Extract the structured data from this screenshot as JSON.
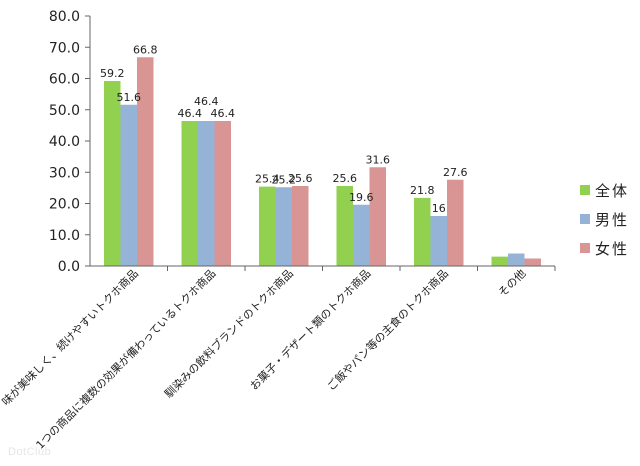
{
  "chart_data": {
    "type": "bar",
    "categories": [
      "味が美味しく、続けやすいトクホ商品",
      "1つの商品に複数の効果が備わっているトクホ商品",
      "馴染みの飲料ブランドのトクホ商品",
      "お菓子・デザート類のトクホ商品",
      "ご飯やパン等の主食のトクホ商品",
      "その他"
    ],
    "series": [
      {
        "name": "全体",
        "color": "#92d050",
        "values": [
          59.2,
          46.4,
          25.4,
          25.6,
          21.8,
          3.0
        ]
      },
      {
        "name": "男性",
        "color": "#95b3d7",
        "values": [
          51.6,
          46.4,
          25.2,
          19.6,
          16.0,
          4.0
        ]
      },
      {
        "name": "女性",
        "color": "#d99594",
        "values": [
          66.8,
          46.4,
          25.6,
          31.6,
          27.6,
          2.4
        ]
      }
    ],
    "data_labels": [
      [
        "59.2",
        "51.6",
        "66.8"
      ],
      [
        "46.4",
        "46.4",
        "46.4"
      ],
      [
        "25.4",
        "25.2",
        "25.6"
      ],
      [
        "25.6",
        "19.6",
        "31.6"
      ],
      [
        "21.8",
        "16",
        "27.6"
      ],
      [
        "",
        "",
        ""
      ]
    ],
    "ylim": [
      0,
      80
    ],
    "yticks": [
      "0.0",
      "10.0",
      "20.0",
      "30.0",
      "40.0",
      "50.0",
      "60.0",
      "70.0",
      "80.0"
    ],
    "title": "",
    "xlabel": "",
    "ylabel": "",
    "grid": false,
    "legend_position": "right"
  },
  "watermark": "DotClub"
}
